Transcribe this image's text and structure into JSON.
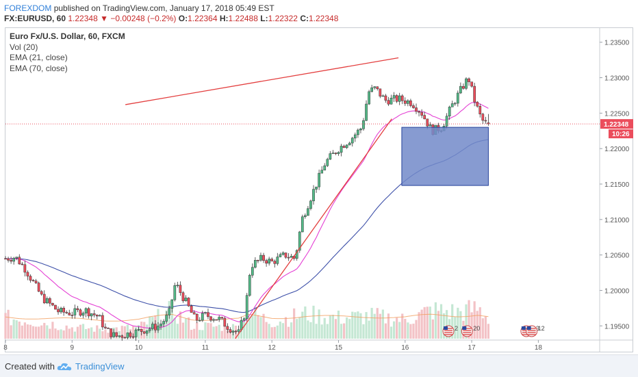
{
  "header": {
    "author": "FOREXDOM",
    "published": "published on TradingView.com, January 17, 2018 05:49 EST",
    "symbol": "FX:EURUSD, 60",
    "last": "1.22348",
    "change_arrow": "▼",
    "change": "−0.00248 (−0.2%)",
    "o_label": "O:",
    "o": "1.22364",
    "h_label": "H:",
    "h": "1.22488",
    "l_label": "L:",
    "l": "1.22322",
    "c_label": "C:",
    "c": "1.22348"
  },
  "legend": {
    "title": "Euro Fx/U.S. Dollar, 60, FXCM",
    "vol": "Vol (20)",
    "ema21": "EMA (21, close)",
    "ema70": "EMA (70, close)"
  },
  "footer": {
    "created": "Created with",
    "brand": "TradingView",
    "logo_icon": "tradingview-cloud-icon"
  },
  "colors": {
    "up": "#53b987",
    "down": "#eb4d5c",
    "ema21": "#e43fd4",
    "ema70": "#3c4fa8",
    "vol_ma": "#f39c5b",
    "trendline": "#e33d3d",
    "box_fill": "#7289c9",
    "box_stroke": "#24419a",
    "price_tag": "#eb4d5c"
  },
  "chart_data": {
    "type": "candlestick",
    "ylim": [
      1.193,
      1.237
    ],
    "y_ticks": [
      "1.23500",
      "1.23000",
      "1.22500",
      "1.22000",
      "1.21500",
      "1.21000",
      "1.20500",
      "1.20000",
      "1.19500"
    ],
    "x_ticks": [
      "8",
      "9",
      "10",
      "11",
      "12",
      "15",
      "16",
      "17",
      "18"
    ],
    "last_price": "1.22348",
    "countdown": "10:26",
    "event_badges": [
      "2",
      "20",
      "13",
      "12"
    ],
    "trendlines": [
      {
        "name": "resistance",
        "from": [
          1.8,
          1.2262
        ],
        "to": [
          5.9,
          1.2328
        ]
      },
      {
        "name": "support",
        "from": [
          3.45,
          1.1932
        ],
        "to": [
          5.8,
          1.2242
        ]
      }
    ],
    "target_box": {
      "x_from": 5.95,
      "x_to": 7.25,
      "y_from": 1.223,
      "y_to": 1.2148
    },
    "path_knots": [
      [
        0,
        1.2045
      ],
      [
        0.15,
        1.2047
      ],
      [
        0.3,
        1.203
      ],
      [
        0.55,
        1.199
      ],
      [
        0.8,
        1.197
      ],
      [
        1.0,
        1.1968
      ],
      [
        1.2,
        1.1972
      ],
      [
        1.4,
        1.1963
      ],
      [
        1.5,
        1.1945
      ],
      [
        1.65,
        1.1935
      ],
      [
        1.9,
        1.194
      ],
      [
        2.1,
        1.1945
      ],
      [
        2.3,
        1.195
      ],
      [
        2.45,
        1.1965
      ],
      [
        2.55,
        1.201
      ],
      [
        2.7,
        1.1985
      ],
      [
        2.85,
        1.1958
      ],
      [
        3.0,
        1.1965
      ],
      [
        3.2,
        1.196
      ],
      [
        3.35,
        1.1948
      ],
      [
        3.5,
        1.194
      ],
      [
        3.6,
        1.197
      ],
      [
        3.68,
        1.2035
      ],
      [
        3.85,
        1.2045
      ],
      [
        4.0,
        1.204
      ],
      [
        4.2,
        1.205
      ],
      [
        4.35,
        1.2045
      ],
      [
        4.45,
        1.21
      ],
      [
        4.6,
        1.2135
      ],
      [
        4.8,
        1.218
      ],
      [
        5.0,
        1.22
      ],
      [
        5.2,
        1.2215
      ],
      [
        5.35,
        1.223
      ],
      [
        5.45,
        1.228
      ],
      [
        5.55,
        1.2285
      ],
      [
        5.7,
        1.2268
      ],
      [
        5.9,
        1.227
      ],
      [
        6.1,
        1.2265
      ],
      [
        6.25,
        1.225
      ],
      [
        6.4,
        1.2225
      ],
      [
        6.55,
        1.223
      ],
      [
        6.7,
        1.226
      ],
      [
        6.85,
        1.2285
      ],
      [
        6.95,
        1.23
      ],
      [
        7.05,
        1.2265
      ],
      [
        7.15,
        1.224
      ],
      [
        7.25,
        1.2234
      ]
    ],
    "volume_profile": [
      [
        0,
        0.55
      ],
      [
        0.5,
        0.45
      ],
      [
        1.0,
        0.3
      ],
      [
        1.5,
        0.25
      ],
      [
        2.0,
        0.3
      ],
      [
        2.5,
        0.75
      ],
      [
        2.8,
        0.35
      ],
      [
        3.5,
        0.3
      ],
      [
        3.65,
        0.7
      ],
      [
        4.0,
        0.45
      ],
      [
        4.5,
        0.65
      ],
      [
        5.0,
        0.55
      ],
      [
        5.5,
        0.6
      ],
      [
        6.0,
        0.5
      ],
      [
        6.4,
        0.75
      ],
      [
        6.8,
        0.7
      ],
      [
        7.1,
        0.8
      ],
      [
        7.25,
        0.55
      ]
    ]
  }
}
